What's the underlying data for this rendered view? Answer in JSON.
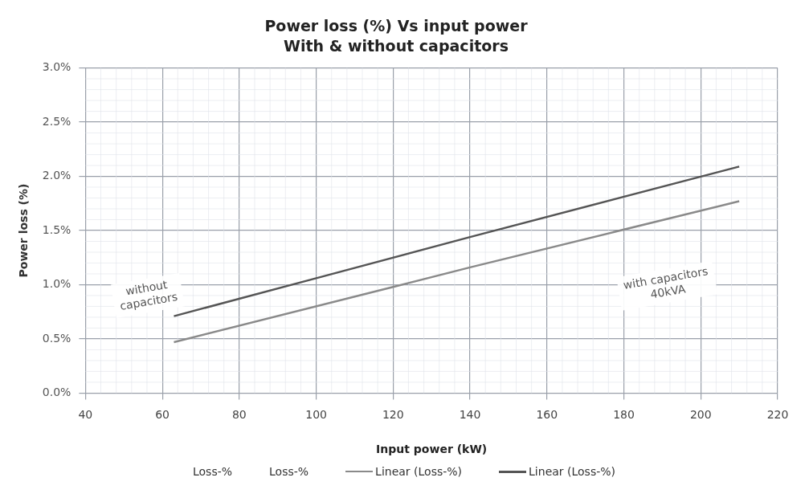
{
  "chart_data": {
    "type": "line",
    "title": "Power loss (%) Vs input power",
    "subtitle": "With & without capacitors",
    "xlabel": "Input power (kW)",
    "ylabel": "Power loss (%)",
    "xlim": [
      40,
      220
    ],
    "xticks": [
      40,
      60,
      80,
      100,
      120,
      140,
      160,
      180,
      200,
      220
    ],
    "ylim": [
      0,
      3
    ],
    "yticks": [
      {
        "value": 0,
        "label": "0.0%"
      },
      {
        "value": 0.5,
        "label": "0.5%"
      },
      {
        "value": 1,
        "label": "1.0%"
      },
      {
        "value": 1.5,
        "label": "1.5%"
      },
      {
        "value": 2,
        "label": "2.0%"
      },
      {
        "value": 2.5,
        "label": "2.5%"
      },
      {
        "value": 3,
        "label": "3.0%"
      }
    ],
    "grid": true,
    "legend": "bottom",
    "marker": "none",
    "line_style": "solid",
    "series": [
      {
        "name": "Loss-%",
        "type": "scatter"
      },
      {
        "name": "Loss-%",
        "type": "scatter"
      },
      {
        "name": "Linear (Loss-%)",
        "color": "#8a8a8a",
        "x": [
          63,
          120,
          140,
          210
        ],
        "values": [
          0.47,
          0.98,
          1.16,
          1.77
        ]
      },
      {
        "name": "Linear (Loss-%)",
        "color": "#555555",
        "x": [
          63,
          100,
          140,
          210
        ],
        "values": [
          0.71,
          1.06,
          1.44,
          2.09
        ]
      }
    ],
    "annotations": [
      "without\ncapacitors",
      "with capacitors\n40kVA"
    ]
  }
}
